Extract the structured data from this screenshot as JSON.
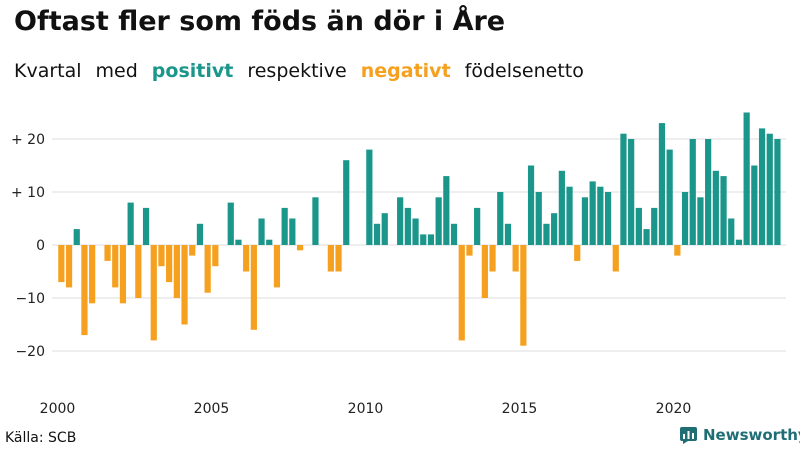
{
  "title": "Oftast fler som föds än dör i Åre",
  "subtitle": {
    "part1": "Kvartal",
    "part2": "med",
    "positive": "positivt",
    "part3": "respektive",
    "negative": "negativt",
    "part4": "födelsenetto"
  },
  "source": "Källa: SCB",
  "brand": "Newsworthy",
  "colors": {
    "positive": "#1a968b",
    "negative": "#f5a01e",
    "grid": "#dddddd",
    "brand": "#1f6e74"
  },
  "chart_data": {
    "type": "bar",
    "title": "Oftast fler som föds än dör i Åre",
    "xlabel": "",
    "ylabel": "",
    "ylim": [
      -25,
      25
    ],
    "grid": true,
    "y_ticks": [
      {
        "value": 20,
        "label": "+ 20"
      },
      {
        "value": 10,
        "label": "+ 10"
      },
      {
        "value": 0,
        "label": "0"
      },
      {
        "value": -10,
        "label": "−10"
      },
      {
        "value": -20,
        "label": "−20"
      }
    ],
    "x_ticks": [
      {
        "year": 2000,
        "label": "2000"
      },
      {
        "year": 2005,
        "label": "2005"
      },
      {
        "year": 2010,
        "label": "2010"
      },
      {
        "year": 2015,
        "label": "2015"
      },
      {
        "year": 2020,
        "label": "2020"
      }
    ],
    "start_year": 2000,
    "start_quarter": 1,
    "values": [
      -7,
      -8,
      3,
      -17,
      -11,
      0,
      -3,
      -8,
      -11,
      8,
      -10,
      7,
      -18,
      -4,
      -7,
      -10,
      -15,
      -2,
      4,
      -9,
      -4,
      0,
      8,
      1,
      -5,
      -16,
      5,
      1,
      -8,
      7,
      5,
      -1,
      0,
      9,
      0,
      -5,
      -5,
      16,
      0,
      0,
      18,
      4,
      6,
      0,
      9,
      7,
      5,
      2,
      2,
      9,
      13,
      4,
      -18,
      -2,
      7,
      -10,
      -5,
      10,
      4,
      -5,
      -19,
      15,
      10,
      4,
      6,
      14,
      11,
      -3,
      9,
      12,
      11,
      10,
      -5,
      21,
      20,
      7,
      3,
      7,
      23,
      18,
      -2,
      10,
      20,
      9,
      20,
      14,
      13,
      5,
      1,
      25,
      15,
      22,
      21,
      20
    ]
  }
}
